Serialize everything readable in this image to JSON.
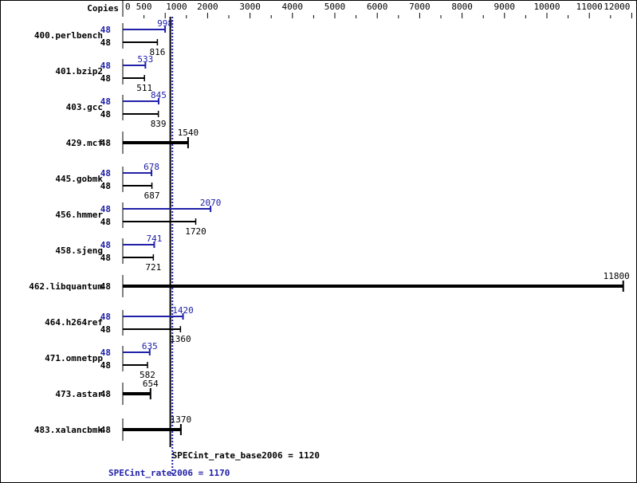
{
  "chart_data": {
    "type": "bar",
    "orientation": "horizontal",
    "axis_label": "Copies",
    "xlim": [
      0,
      12000
    ],
    "x_ticks": [
      0,
      500,
      1000,
      2000,
      3000,
      4000,
      5000,
      6000,
      7000,
      8000,
      9000,
      10000,
      11000,
      12000
    ],
    "minor_tick_interval": 500,
    "categories": [
      "400.perlbench",
      "401.bzip2",
      "403.gcc",
      "429.mcf",
      "445.gobmk",
      "456.hmmer",
      "458.sjeng",
      "462.libquantum",
      "464.h264ref",
      "471.omnetpp",
      "473.astar",
      "483.xalancbmk"
    ],
    "series": [
      {
        "name": "SPECint_rate2006",
        "color": "#2020a8",
        "copies": [
          48,
          48,
          48,
          null,
          48,
          48,
          48,
          null,
          48,
          48,
          null,
          null
        ],
        "values": [
          998,
          533,
          845,
          null,
          678,
          2070,
          741,
          null,
          1420,
          635,
          null,
          null
        ]
      },
      {
        "name": "SPECint_rate_base2006",
        "color": "#000000",
        "copies": [
          48,
          48,
          48,
          48,
          48,
          48,
          48,
          48,
          48,
          48,
          48,
          48
        ],
        "values": [
          816,
          511,
          839,
          1540,
          687,
          1720,
          721,
          11800,
          1360,
          582,
          654,
          1370
        ]
      }
    ],
    "reference_lines": [
      {
        "label": "SPECint_rate_base2006 = 1120",
        "value": 1120,
        "style": "solid",
        "color": "#000000"
      },
      {
        "label": "SPECint_rate2006 = 1170",
        "value": 1170,
        "style": "dotted",
        "color": "#2020a8"
      }
    ]
  }
}
